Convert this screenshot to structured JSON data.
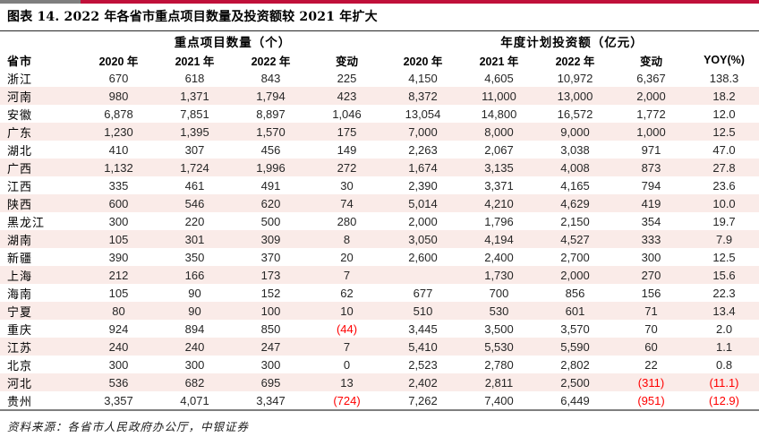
{
  "title": "图表 14. 2022 年各省市重点项目数量及投资额较 2021 年扩大",
  "source_note": "资料来源：各省市人民政府办公厅，中银证券",
  "colors": {
    "accent_red_bar": "#c0103a",
    "accent_gray_bar": "#7f7f7f",
    "row_highlight_pink": "#faebe8",
    "negative_value_red": "#ff0000"
  },
  "table": {
    "group_headers": [
      {
        "label": "重点项目数量（个）",
        "span": 4
      },
      {
        "label": "年度计划投资额（亿元）",
        "span": 5
      }
    ],
    "columns": [
      "省市",
      "2020 年",
      "2021 年",
      "2022 年",
      "变动",
      "2020 年",
      "2021 年",
      "2022 年",
      "变动",
      "YOY(%)"
    ],
    "rows": [
      {
        "province": "浙江",
        "values": [
          "670",
          "618",
          "843",
          "225",
          "4,150",
          "4,605",
          "10,972",
          "6,367",
          "138.3"
        ]
      },
      {
        "province": "河南",
        "values": [
          "980",
          "1,371",
          "1,794",
          "423",
          "8,372",
          "11,000",
          "13,000",
          "2,000",
          "18.2"
        ]
      },
      {
        "province": "安徽",
        "values": [
          "6,878",
          "7,851",
          "8,897",
          "1,046",
          "13,054",
          "14,800",
          "16,572",
          "1,772",
          "12.0"
        ]
      },
      {
        "province": "广东",
        "values": [
          "1,230",
          "1,395",
          "1,570",
          "175",
          "7,000",
          "8,000",
          "9,000",
          "1,000",
          "12.5"
        ]
      },
      {
        "province": "湖北",
        "values": [
          "410",
          "307",
          "456",
          "149",
          "2,263",
          "2,067",
          "3,038",
          "971",
          "47.0"
        ]
      },
      {
        "province": "广西",
        "values": [
          "1,132",
          "1,724",
          "1,996",
          "272",
          "1,674",
          "3,135",
          "4,008",
          "873",
          "27.8"
        ]
      },
      {
        "province": "江西",
        "values": [
          "335",
          "461",
          "491",
          "30",
          "2,390",
          "3,371",
          "4,165",
          "794",
          "23.6"
        ]
      },
      {
        "province": "陕西",
        "values": [
          "600",
          "546",
          "620",
          "74",
          "5,014",
          "4,210",
          "4,629",
          "419",
          "10.0"
        ]
      },
      {
        "province": "黑龙江",
        "values": [
          "300",
          "220",
          "500",
          "280",
          "2,000",
          "1,796",
          "2,150",
          "354",
          "19.7"
        ]
      },
      {
        "province": "湖南",
        "values": [
          "105",
          "301",
          "309",
          "8",
          "3,050",
          "4,194",
          "4,527",
          "333",
          "7.9"
        ]
      },
      {
        "province": "新疆",
        "values": [
          "390",
          "350",
          "370",
          "20",
          "2,600",
          "2,400",
          "2,700",
          "300",
          "12.5"
        ]
      },
      {
        "province": "上海",
        "values": [
          "212",
          "166",
          "173",
          "7",
          "",
          "1,730",
          "2,000",
          "270",
          "15.6"
        ]
      },
      {
        "province": "海南",
        "values": [
          "105",
          "90",
          "152",
          "62",
          "677",
          "700",
          "856",
          "156",
          "22.3"
        ]
      },
      {
        "province": "宁夏",
        "values": [
          "80",
          "90",
          "100",
          "10",
          "510",
          "530",
          "601",
          "71",
          "13.4"
        ]
      },
      {
        "province": "重庆",
        "values": [
          "924",
          "894",
          "850",
          "(44)",
          "3,445",
          "3,500",
          "3,570",
          "70",
          "2.0"
        ]
      },
      {
        "province": "江苏",
        "values": [
          "240",
          "240",
          "247",
          "7",
          "5,410",
          "5,530",
          "5,590",
          "60",
          "1.1"
        ]
      },
      {
        "province": "北京",
        "values": [
          "300",
          "300",
          "300",
          "0",
          "2,523",
          "2,780",
          "2,802",
          "22",
          "0.8"
        ]
      },
      {
        "province": "河北",
        "values": [
          "536",
          "682",
          "695",
          "13",
          "2,402",
          "2,811",
          "2,500",
          "(311)",
          "(11.1)"
        ]
      },
      {
        "province": "贵州",
        "values": [
          "3,357",
          "4,071",
          "3,347",
          "(724)",
          "7,262",
          "7,400",
          "6,449",
          "(951)",
          "(12.9)"
        ]
      }
    ]
  }
}
